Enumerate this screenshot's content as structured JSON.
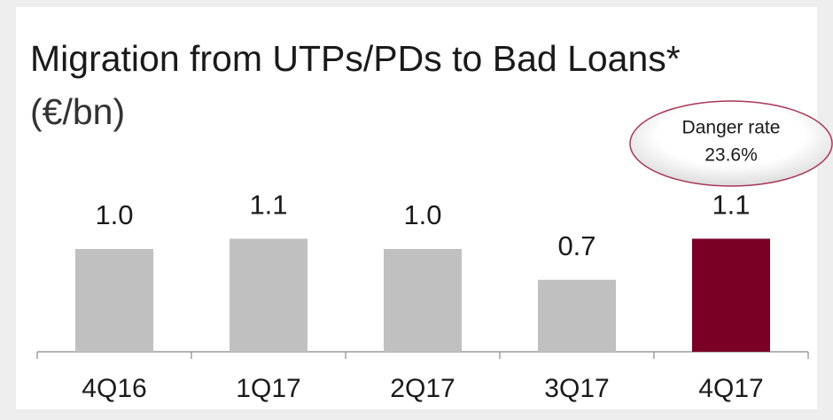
{
  "chart_data": {
    "type": "bar",
    "title": "Migration from UTPs/PDs to Bad Loans*",
    "unit": "(€/bn)",
    "categories": [
      "4Q16",
      "1Q17",
      "2Q17",
      "3Q17",
      "4Q17"
    ],
    "values": [
      1.0,
      1.1,
      1.0,
      0.7,
      1.1
    ],
    "value_labels": [
      "1.0",
      "1.1",
      "1.0",
      "0.7",
      "1.1"
    ],
    "colors": [
      "#c0c0c0",
      "#c0c0c0",
      "#c0c0c0",
      "#c0c0c0",
      "#7a0026"
    ],
    "annotation": {
      "label": "Danger rate",
      "value": "23.6%"
    }
  }
}
